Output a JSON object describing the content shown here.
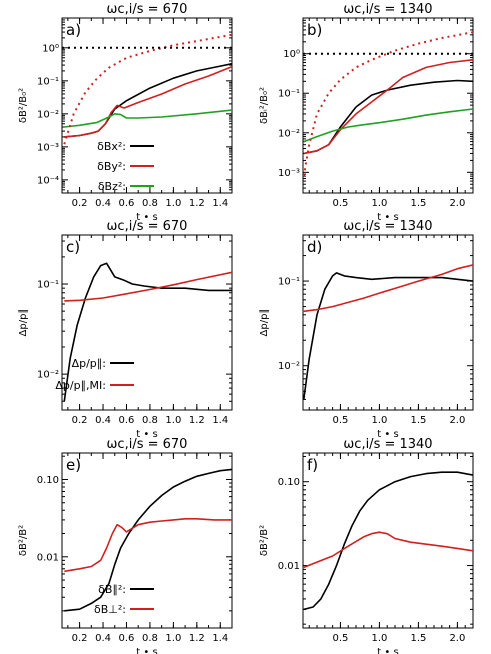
{
  "chart_data": [
    {
      "id": "a",
      "panel_label": "a)",
      "title": "ωc,i/s = 670",
      "xlabel": "t • s",
      "ylabel": "δB²/B₀²",
      "type": "line",
      "yscale": "log",
      "xlim": [
        0.05,
        1.5
      ],
      "ylim": [
        4e-05,
        8
      ],
      "xticks": [
        0.2,
        0.4,
        0.6,
        0.8,
        1.0,
        1.2,
        1.4
      ],
      "xtick_labels": [
        "0.2",
        "0.4",
        "0.6",
        "0.8",
        "1.0",
        "1.2",
        "1.4"
      ],
      "yticks": [
        0.0001,
        0.001,
        0.01,
        0.1,
        1
      ],
      "ytick_labels": [
        "10⁻⁴",
        "10⁻³",
        "10⁻²",
        "10⁻¹",
        "10⁰"
      ],
      "legend_position": "bottom-center",
      "series": [
        {
          "name": "δBx²:",
          "color": "#000000",
          "style": "solid",
          "in_legend": true,
          "x": [
            0.07,
            0.2,
            0.3,
            0.36,
            0.42,
            0.5,
            0.6,
            0.8,
            1.0,
            1.2,
            1.4,
            1.5
          ],
          "y": [
            0.002,
            0.0022,
            0.0026,
            0.003,
            0.005,
            0.014,
            0.025,
            0.06,
            0.12,
            0.2,
            0.28,
            0.33
          ]
        },
        {
          "name": "δBy²:",
          "color": "#d02020",
          "style": "solid",
          "in_legend": true,
          "x": [
            0.07,
            0.2,
            0.3,
            0.36,
            0.42,
            0.47,
            0.52,
            0.58,
            0.7,
            0.9,
            1.1,
            1.3,
            1.5
          ],
          "y": [
            0.002,
            0.0022,
            0.0026,
            0.003,
            0.005,
            0.011,
            0.018,
            0.015,
            0.022,
            0.04,
            0.08,
            0.14,
            0.27
          ]
        },
        {
          "name": "δBz²:",
          "color": "#22a022",
          "style": "solid",
          "in_legend": true,
          "x": [
            0.07,
            0.2,
            0.35,
            0.45,
            0.5,
            0.55,
            0.6,
            0.7,
            0.9,
            1.2,
            1.5
          ],
          "y": [
            0.004,
            0.0045,
            0.0055,
            0.008,
            0.01,
            0.0095,
            0.0075,
            0.0075,
            0.008,
            0.01,
            0.013
          ]
        },
        {
          "name": "",
          "color": "#d02020",
          "style": "dotted",
          "in_legend": false,
          "x": [
            0.07,
            0.15,
            0.25,
            0.35,
            0.45,
            0.6,
            0.8,
            1.0,
            1.2,
            1.5
          ],
          "y": [
            0.0012,
            0.01,
            0.045,
            0.12,
            0.25,
            0.5,
            0.8,
            1.2,
            1.6,
            2.5
          ]
        },
        {
          "name": "",
          "color": "#000000",
          "style": "dotted",
          "in_legend": false,
          "x": [
            0.05,
            1.5
          ],
          "y": [
            1,
            1
          ]
        }
      ]
    },
    {
      "id": "b",
      "panel_label": "b)",
      "title": "ωc,i/s = 1340",
      "xlabel": "t • s",
      "ylabel": "δBᵢ²/B₀²",
      "type": "line",
      "yscale": "log",
      "xlim": [
        0.02,
        2.2
      ],
      "ylim": [
        0.0003,
        8
      ],
      "xticks": [
        0.5,
        1.0,
        1.5,
        2.0
      ],
      "xtick_labels": [
        "0.5",
        "1.0",
        "1.5",
        "2.0"
      ],
      "yticks": [
        0.001,
        0.01,
        0.1,
        1
      ],
      "ytick_labels": [
        "10⁻³",
        "10⁻²",
        "10⁻¹",
        "10⁰"
      ],
      "legend_position": "none",
      "series": [
        {
          "name": "",
          "color": "#000000",
          "style": "solid",
          "in_legend": false,
          "x": [
            0.03,
            0.2,
            0.35,
            0.5,
            0.7,
            0.9,
            1.1,
            1.4,
            1.7,
            2.0,
            2.2
          ],
          "y": [
            0.003,
            0.0035,
            0.005,
            0.014,
            0.045,
            0.09,
            0.12,
            0.16,
            0.19,
            0.21,
            0.2
          ]
        },
        {
          "name": "",
          "color": "#d02020",
          "style": "solid",
          "in_legend": false,
          "x": [
            0.03,
            0.2,
            0.35,
            0.5,
            0.7,
            0.9,
            1.1,
            1.3,
            1.6,
            1.9,
            2.2
          ],
          "y": [
            0.003,
            0.0035,
            0.005,
            0.012,
            0.03,
            0.06,
            0.12,
            0.25,
            0.45,
            0.6,
            0.7
          ]
        },
        {
          "name": "",
          "color": "#22a022",
          "style": "solid",
          "in_legend": false,
          "x": [
            0.03,
            0.2,
            0.4,
            0.6,
            0.8,
            1.0,
            1.3,
            1.6,
            1.9,
            2.2
          ],
          "y": [
            0.006,
            0.008,
            0.011,
            0.014,
            0.016,
            0.018,
            0.022,
            0.028,
            0.034,
            0.04
          ]
        },
        {
          "name": "",
          "color": "#d02020",
          "style": "dotted",
          "in_legend": false,
          "x": [
            0.03,
            0.1,
            0.2,
            0.35,
            0.5,
            0.7,
            0.9,
            1.2,
            1.5,
            1.8,
            2.2
          ],
          "y": [
            0.0008,
            0.005,
            0.03,
            0.1,
            0.22,
            0.45,
            0.7,
            1.2,
            1.8,
            2.5,
            3.5
          ]
        },
        {
          "name": "",
          "color": "#000000",
          "style": "dotted",
          "in_legend": false,
          "x": [
            0.02,
            2.2
          ],
          "y": [
            1,
            1
          ]
        }
      ]
    },
    {
      "id": "c",
      "panel_label": "c)",
      "title": "ωc,i/s = 670",
      "xlabel": "t • s",
      "ylabel": "Δp/p∥",
      "type": "line",
      "yscale": "log",
      "xlim": [
        0.05,
        1.5
      ],
      "ylim": [
        0.004,
        0.35
      ],
      "xticks": [
        0.2,
        0.4,
        0.6,
        0.8,
        1.0,
        1.2,
        1.4
      ],
      "xtick_labels": [
        "0.2",
        "0.4",
        "0.6",
        "0.8",
        "1.0",
        "1.2",
        "1.4"
      ],
      "yticks": [
        0.01,
        0.1
      ],
      "ytick_labels": [
        "10⁻²",
        "10⁻¹"
      ],
      "legend_position": "bottom-center",
      "series": [
        {
          "name": "Δp/p∥:",
          "color": "#000000",
          "style": "solid",
          "in_legend": true,
          "x": [
            0.07,
            0.12,
            0.18,
            0.25,
            0.32,
            0.38,
            0.43,
            0.5,
            0.58,
            0.65,
            0.75,
            0.9,
            1.1,
            1.3,
            1.5
          ],
          "y": [
            0.005,
            0.015,
            0.035,
            0.07,
            0.12,
            0.16,
            0.17,
            0.12,
            0.11,
            0.1,
            0.095,
            0.09,
            0.09,
            0.085,
            0.085
          ]
        },
        {
          "name": "Δp/p∥,MI:",
          "color": "#d02020",
          "style": "solid",
          "in_legend": true,
          "x": [
            0.07,
            0.2,
            0.4,
            0.6,
            0.8,
            1.0,
            1.2,
            1.5
          ],
          "y": [
            0.065,
            0.066,
            0.07,
            0.078,
            0.087,
            0.098,
            0.112,
            0.135
          ]
        }
      ]
    },
    {
      "id": "d",
      "panel_label": "d)",
      "title": "ωc,i/s = 1340",
      "xlabel": "t • s",
      "ylabel": "Δp/p∥",
      "type": "line",
      "yscale": "log",
      "xlim": [
        0.02,
        2.2
      ],
      "ylim": [
        0.003,
        0.35
      ],
      "xticks": [
        0.5,
        1.0,
        1.5,
        2.0
      ],
      "xtick_labels": [
        "0.5",
        "1.0",
        "1.5",
        "2.0"
      ],
      "yticks": [
        0.01,
        0.1
      ],
      "ytick_labels": [
        "10⁻²",
        "10⁻¹"
      ],
      "legend_position": "none",
      "series": [
        {
          "name": "",
          "color": "#000000",
          "style": "solid",
          "in_legend": false,
          "x": [
            0.03,
            0.1,
            0.2,
            0.3,
            0.4,
            0.45,
            0.55,
            0.7,
            0.9,
            1.2,
            1.5,
            1.8,
            2.0,
            2.2
          ],
          "y": [
            0.004,
            0.012,
            0.04,
            0.08,
            0.115,
            0.125,
            0.115,
            0.11,
            0.105,
            0.11,
            0.11,
            0.11,
            0.105,
            0.1
          ]
        },
        {
          "name": "",
          "color": "#d02020",
          "style": "solid",
          "in_legend": false,
          "x": [
            0.03,
            0.2,
            0.4,
            0.6,
            0.8,
            1.0,
            1.2,
            1.5,
            1.8,
            2.0,
            2.2
          ],
          "y": [
            0.044,
            0.046,
            0.05,
            0.056,
            0.063,
            0.072,
            0.082,
            0.1,
            0.12,
            0.14,
            0.155
          ]
        }
      ]
    },
    {
      "id": "e",
      "panel_label": "e)",
      "title": "ωc,i/s = 670",
      "xlabel": "t • s",
      "ylabel": "δB²/B²",
      "type": "line",
      "yscale": "log",
      "xlim": [
        0.05,
        1.5
      ],
      "ylim": [
        0.0012,
        0.22
      ],
      "xticks": [
        0.2,
        0.4,
        0.6,
        0.8,
        1.0,
        1.2,
        1.4
      ],
      "xtick_labels": [
        "0.2",
        "0.4",
        "0.6",
        "0.8",
        "1.0",
        "1.2",
        "1.4"
      ],
      "yticks": [
        0.01,
        0.1
      ],
      "ytick_labels": [
        "0.01",
        "0.10"
      ],
      "legend_position": "bottom-center",
      "series": [
        {
          "name": "δB∥²:",
          "color": "#000000",
          "style": "solid",
          "in_legend": true,
          "x": [
            0.07,
            0.2,
            0.3,
            0.38,
            0.45,
            0.5,
            0.55,
            0.62,
            0.7,
            0.8,
            0.9,
            1.0,
            1.1,
            1.2,
            1.3,
            1.4,
            1.5
          ],
          "y": [
            0.002,
            0.0021,
            0.0025,
            0.003,
            0.0045,
            0.008,
            0.013,
            0.02,
            0.03,
            0.045,
            0.062,
            0.08,
            0.095,
            0.11,
            0.12,
            0.13,
            0.135
          ]
        },
        {
          "name": "δB⊥²:",
          "color": "#d02020",
          "style": "solid",
          "in_legend": true,
          "x": [
            0.07,
            0.2,
            0.3,
            0.38,
            0.43,
            0.48,
            0.52,
            0.56,
            0.6,
            0.7,
            0.8,
            0.9,
            1.0,
            1.1,
            1.2,
            1.35,
            1.5
          ],
          "y": [
            0.0065,
            0.007,
            0.0075,
            0.009,
            0.013,
            0.02,
            0.026,
            0.024,
            0.021,
            0.026,
            0.028,
            0.029,
            0.03,
            0.031,
            0.031,
            0.03,
            0.03
          ]
        }
      ]
    },
    {
      "id": "f",
      "panel_label": "f)",
      "title": "ωc,i/s = 1340",
      "xlabel": "t • s",
      "ylabel": "δB²/B²",
      "type": "line",
      "yscale": "log",
      "xlim": [
        0.02,
        2.2
      ],
      "ylim": [
        0.0018,
        0.22
      ],
      "xticks": [
        0.5,
        1.0,
        1.5,
        2.0
      ],
      "xtick_labels": [
        "0.5",
        "1.0",
        "1.5",
        "2.0"
      ],
      "yticks": [
        0.01,
        0.1
      ],
      "ytick_labels": [
        "0.01",
        "0.10"
      ],
      "legend_position": "none",
      "series": [
        {
          "name": "",
          "color": "#000000",
          "style": "solid",
          "in_legend": false,
          "x": [
            0.03,
            0.15,
            0.25,
            0.35,
            0.45,
            0.55,
            0.65,
            0.75,
            0.85,
            1.0,
            1.2,
            1.4,
            1.6,
            1.8,
            2.0,
            2.2
          ],
          "y": [
            0.003,
            0.0032,
            0.004,
            0.006,
            0.01,
            0.018,
            0.03,
            0.045,
            0.06,
            0.08,
            0.1,
            0.115,
            0.125,
            0.13,
            0.13,
            0.12
          ]
        },
        {
          "name": "",
          "color": "#d02020",
          "style": "solid",
          "in_legend": false,
          "x": [
            0.03,
            0.2,
            0.4,
            0.6,
            0.8,
            0.9,
            1.0,
            1.1,
            1.2,
            1.4,
            1.6,
            1.8,
            2.0,
            2.2
          ],
          "y": [
            0.0095,
            0.011,
            0.013,
            0.017,
            0.022,
            0.024,
            0.025,
            0.024,
            0.021,
            0.019,
            0.018,
            0.017,
            0.016,
            0.015
          ]
        }
      ]
    }
  ]
}
